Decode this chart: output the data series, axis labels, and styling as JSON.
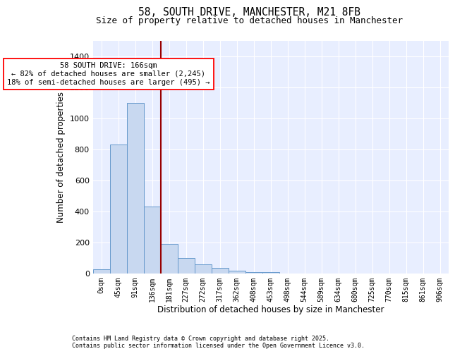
{
  "title": "58, SOUTH DRIVE, MANCHESTER, M21 8FB",
  "subtitle": "Size of property relative to detached houses in Manchester",
  "xlabel": "Distribution of detached houses by size in Manchester",
  "ylabel": "Number of detached properties",
  "bar_color": "#c8d8f0",
  "bar_edge_color": "#6699cc",
  "background_color": "#e8eeff",
  "grid_color": "#ffffff",
  "categories": [
    "0sqm",
    "45sqm",
    "91sqm",
    "136sqm",
    "181sqm",
    "227sqm",
    "272sqm",
    "317sqm",
    "362sqm",
    "408sqm",
    "453sqm",
    "498sqm",
    "544sqm",
    "589sqm",
    "634sqm",
    "680sqm",
    "725sqm",
    "770sqm",
    "815sqm",
    "861sqm",
    "906sqm"
  ],
  "values": [
    25,
    830,
    1100,
    430,
    190,
    100,
    55,
    35,
    15,
    8,
    5,
    0,
    0,
    0,
    0,
    0,
    0,
    0,
    0,
    0,
    0
  ],
  "annotation_text": "58 SOUTH DRIVE: 166sqm\n← 82% of detached houses are smaller (2,245)\n18% of semi-detached houses are larger (495) →",
  "ylim": [
    0,
    1500
  ],
  "copyright_text": "Contains HM Land Registry data © Crown copyright and database right 2025.\nContains public sector information licensed under the Open Government Licence v3.0."
}
